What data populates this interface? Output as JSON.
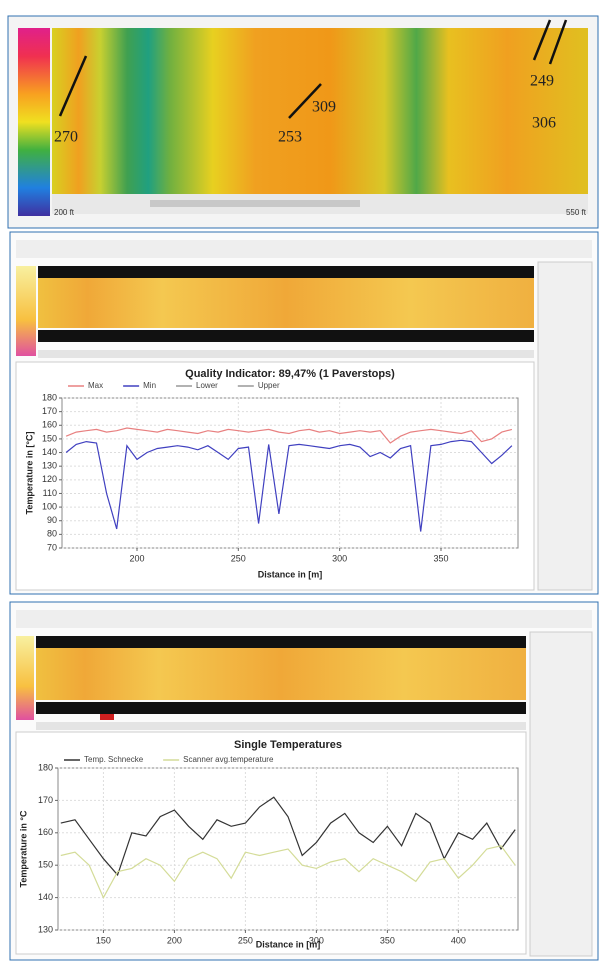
{
  "heatmap": {
    "annotations": [
      "270",
      "253",
      "309",
      "249",
      "306"
    ],
    "scale_start": "200 ft",
    "scale_end": "550 ft"
  },
  "chart_data": [
    {
      "type": "line",
      "title": "Quality Indicator: 89,47% (1 Paverstops)",
      "x_label": "Distance in [m]",
      "y_label": "Temperature in [°C]",
      "x": [
        165,
        170,
        175,
        180,
        185,
        190,
        195,
        200,
        205,
        210,
        215,
        220,
        225,
        230,
        235,
        240,
        245,
        250,
        255,
        260,
        265,
        270,
        275,
        280,
        285,
        290,
        295,
        300,
        305,
        310,
        315,
        320,
        325,
        330,
        335,
        340,
        345,
        350,
        355,
        360,
        365,
        370,
        375,
        380,
        385
      ],
      "series": [
        {
          "name": "Max",
          "color": "#e88080",
          "values": [
            152,
            155,
            156,
            157,
            155,
            156,
            158,
            157,
            156,
            155,
            157,
            156,
            155,
            154,
            156,
            155,
            157,
            156,
            155,
            156,
            157,
            155,
            154,
            156,
            157,
            155,
            156,
            154,
            155,
            156,
            155,
            156,
            147,
            152,
            155,
            156,
            157,
            156,
            155,
            154,
            156,
            148,
            150,
            155,
            157
          ]
        },
        {
          "name": "Min",
          "color": "#4040c0",
          "values": [
            140,
            146,
            148,
            147,
            110,
            84,
            145,
            135,
            140,
            143,
            144,
            145,
            144,
            142,
            145,
            140,
            135,
            143,
            144,
            88,
            146,
            95,
            145,
            146,
            145,
            144,
            143,
            145,
            146,
            144,
            137,
            140,
            136,
            143,
            145,
            82,
            145,
            146,
            148,
            149,
            148,
            140,
            132,
            138,
            145
          ]
        },
        {
          "name": "Lower",
          "color": "#999999",
          "values": [
            null,
            null,
            null,
            null,
            null,
            null,
            null,
            null,
            null,
            null,
            null,
            null,
            null,
            null,
            null,
            null,
            null,
            null,
            null,
            null,
            null,
            null,
            null,
            null,
            null,
            null,
            null,
            null,
            null,
            null,
            null,
            null,
            null,
            null,
            null,
            null,
            null,
            null,
            null,
            null,
            null,
            null,
            null,
            null,
            null
          ]
        },
        {
          "name": "Upper",
          "color": "#999999",
          "values": [
            null,
            null,
            null,
            null,
            null,
            null,
            null,
            null,
            null,
            null,
            null,
            null,
            null,
            null,
            null,
            null,
            null,
            null,
            null,
            null,
            null,
            null,
            null,
            null,
            null,
            null,
            null,
            null,
            null,
            null,
            null,
            null,
            null,
            null,
            null,
            null,
            null,
            null,
            null,
            null,
            null,
            null,
            null,
            null,
            null
          ]
        }
      ],
      "xlim": [
        163,
        388
      ],
      "ylim": [
        70,
        180
      ],
      "xticks": [
        200,
        250,
        300,
        350
      ],
      "yticks": [
        70,
        80,
        90,
        100,
        110,
        120,
        130,
        140,
        150,
        160,
        170,
        180
      ],
      "grid": true
    },
    {
      "type": "line",
      "title": "Single Temperatures",
      "x_label": "Distance in [m]",
      "y_label": "Temperature in °C",
      "x": [
        120,
        130,
        140,
        150,
        160,
        170,
        180,
        190,
        200,
        210,
        220,
        230,
        240,
        250,
        260,
        270,
        280,
        290,
        300,
        310,
        320,
        330,
        340,
        350,
        360,
        370,
        380,
        390,
        400,
        410,
        420,
        430,
        440
      ],
      "series": [
        {
          "name": "Temp. Schnecke",
          "color": "#333333",
          "values": [
            163,
            164,
            158,
            152,
            147,
            160,
            159,
            165,
            167,
            162,
            158,
            164,
            162,
            163,
            168,
            171,
            165,
            153,
            157,
            163,
            166,
            160,
            157,
            162,
            156,
            166,
            163,
            152,
            160,
            158,
            163,
            155,
            161
          ]
        },
        {
          "name": "Scanner avg.temperature",
          "color": "#d4dc98",
          "values": [
            153,
            154,
            150,
            140,
            148,
            149,
            152,
            150,
            145,
            152,
            154,
            152,
            146,
            154,
            153,
            154,
            155,
            150,
            149,
            151,
            152,
            148,
            152,
            150,
            148,
            145,
            151,
            152,
            146,
            150,
            155,
            156,
            150
          ]
        }
      ],
      "xlim": [
        118,
        442
      ],
      "ylim": [
        130,
        180
      ],
      "xticks": [
        150,
        200,
        250,
        300,
        350,
        400
      ],
      "yticks": [
        130,
        140,
        150,
        160,
        170,
        180
      ],
      "grid": true
    }
  ]
}
